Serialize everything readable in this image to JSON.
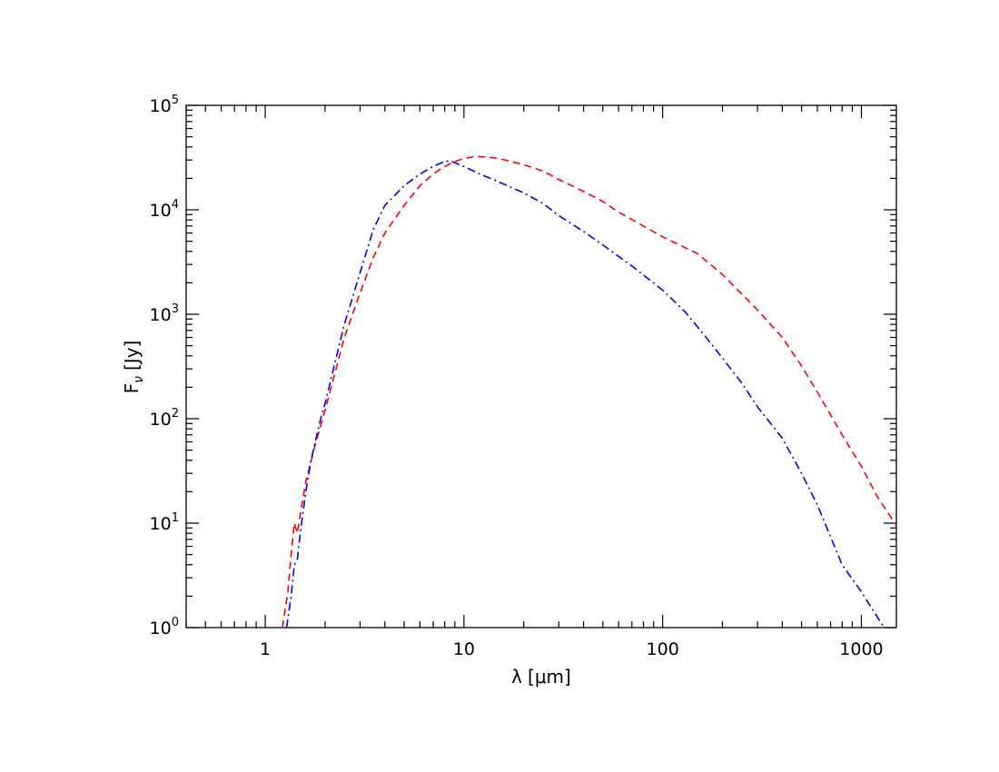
{
  "chart_data": {
    "type": "line",
    "title": "",
    "xlabel": "λ [μm]",
    "ylabel": "F_ν [Jy]",
    "xlabel_parts": {
      "symbol": "λ",
      "unit": "[μm]"
    },
    "ylabel_parts": {
      "symbol": "F",
      "subscript": "ν",
      "unit": "[Jy]"
    },
    "xscale": "log",
    "yscale": "log",
    "xlim": [
      0.4,
      1500
    ],
    "ylim": [
      1,
      100000
    ],
    "grid": false,
    "legend": "none",
    "x_ticks": [
      {
        "value": 1,
        "label": "1"
      },
      {
        "value": 10,
        "label": "10"
      },
      {
        "value": 100,
        "label": "100"
      },
      {
        "value": 1000,
        "label": "1000"
      }
    ],
    "y_ticks": [
      {
        "value": 1,
        "base": "10",
        "exp": "0"
      },
      {
        "value": 10,
        "base": "10",
        "exp": "1"
      },
      {
        "value": 100,
        "base": "10",
        "exp": "2"
      },
      {
        "value": 1000,
        "base": "10",
        "exp": "3"
      },
      {
        "value": 10000,
        "base": "10",
        "exp": "4"
      },
      {
        "value": 100000,
        "base": "10",
        "exp": "5"
      }
    ],
    "series": [
      {
        "color": "#ff0000",
        "dash": "dashed",
        "points": [
          [
            1.22,
            1.0
          ],
          [
            1.3,
            2.2
          ],
          [
            1.35,
            5.0
          ],
          [
            1.4,
            10.0
          ],
          [
            1.45,
            8.0
          ],
          [
            1.5,
            12.0
          ],
          [
            1.6,
            25
          ],
          [
            1.8,
            60
          ],
          [
            2.0,
            120
          ],
          [
            2.5,
            600
          ],
          [
            3.0,
            1600
          ],
          [
            3.5,
            3500
          ],
          [
            4.0,
            6000
          ],
          [
            5.0,
            11000
          ],
          [
            6.0,
            17000
          ],
          [
            7.0,
            22000
          ],
          [
            8.0,
            26000
          ],
          [
            9.0,
            29000
          ],
          [
            10.0,
            31000
          ],
          [
            11.5,
            32500
          ],
          [
            13.0,
            32000
          ],
          [
            15.0,
            31000
          ],
          [
            20.0,
            27000
          ],
          [
            25.0,
            23500
          ],
          [
            30.0,
            19500
          ],
          [
            40.0,
            15000
          ],
          [
            50.0,
            12000
          ],
          [
            60.0,
            9500
          ],
          [
            80.0,
            7000
          ],
          [
            100.0,
            5500
          ],
          [
            150.0,
            3800
          ],
          [
            200.0,
            2400
          ],
          [
            300.0,
            1100
          ],
          [
            400.0,
            600
          ],
          [
            500.0,
            320
          ],
          [
            600.0,
            180
          ],
          [
            800.0,
            70
          ],
          [
            1000.0,
            35
          ],
          [
            1200.0,
            18
          ],
          [
            1500.0,
            9.5
          ]
        ]
      },
      {
        "color": "#0000ff",
        "dash": "dashdot",
        "points": [
          [
            1.28,
            1.0
          ],
          [
            1.35,
            2.0
          ],
          [
            1.4,
            4.0
          ],
          [
            1.45,
            4.5
          ],
          [
            1.5,
            8.0
          ],
          [
            1.6,
            20
          ],
          [
            1.7,
            40
          ],
          [
            1.9,
            100
          ],
          [
            2.0,
            140
          ],
          [
            2.5,
            800
          ],
          [
            3.0,
            2500
          ],
          [
            3.5,
            6500
          ],
          [
            4.0,
            11000
          ],
          [
            5.0,
            17000
          ],
          [
            6.0,
            22000
          ],
          [
            7.0,
            26000
          ],
          [
            8.0,
            29000
          ],
          [
            8.5,
            29500
          ],
          [
            10.0,
            26000
          ],
          [
            12.0,
            22000
          ],
          [
            15.0,
            18500
          ],
          [
            20.0,
            14500
          ],
          [
            25.0,
            11500
          ],
          [
            30.0,
            8800
          ],
          [
            40.0,
            6200
          ],
          [
            50.0,
            4600
          ],
          [
            70.0,
            2900
          ],
          [
            100.0,
            1700
          ],
          [
            130.0,
            1050
          ],
          [
            160.0,
            650
          ],
          [
            200.0,
            380
          ],
          [
            250.0,
            220
          ],
          [
            300.0,
            130
          ],
          [
            400.0,
            65
          ],
          [
            500.0,
            30
          ],
          [
            600.0,
            15
          ],
          [
            800.0,
            4.0
          ],
          [
            1000.0,
            2.2
          ],
          [
            1300.0,
            1.0
          ]
        ]
      }
    ]
  }
}
